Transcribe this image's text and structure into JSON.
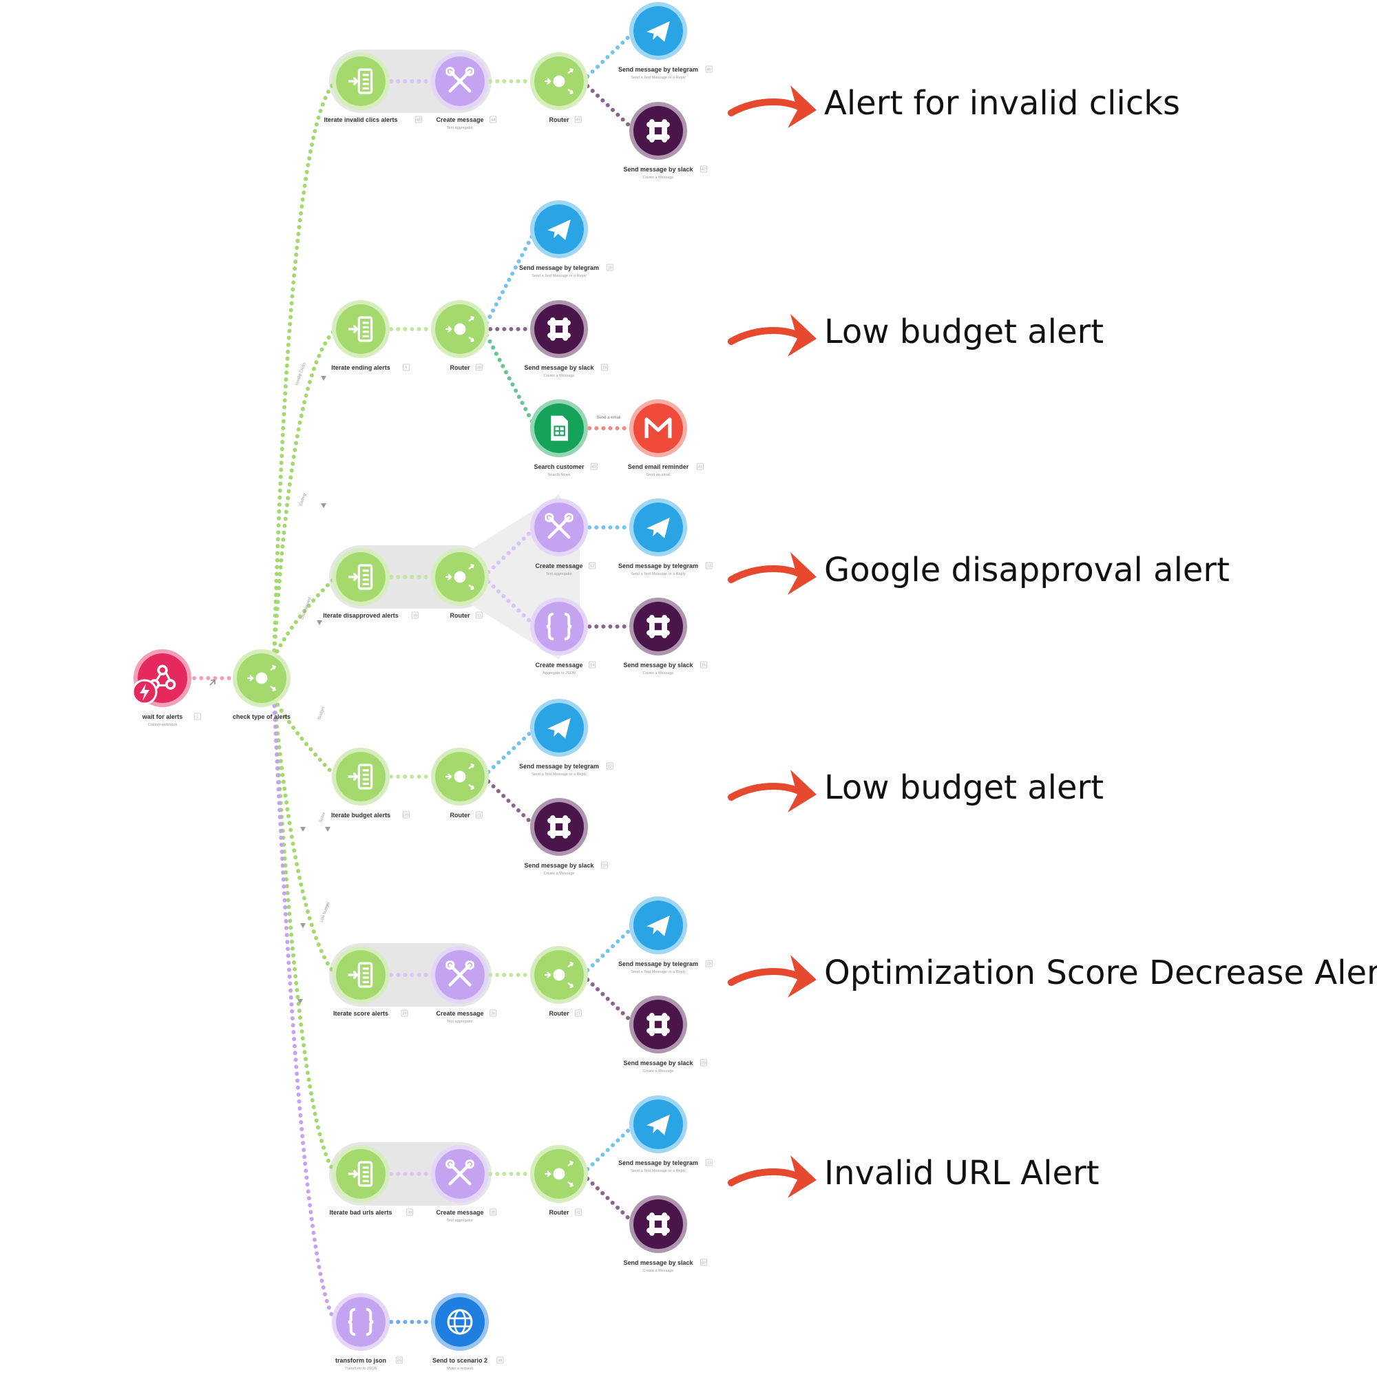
{
  "colors": {
    "flow": "#a3d96d",
    "tools": "#c4a4f0",
    "telegram": "#2aa4e4",
    "slack": "#4a154b",
    "sheets": "#15a35a",
    "gmail": "#ef4a3a",
    "http": "#1f7fe0",
    "webhook": "#e5295f",
    "arrow": "#e6492d",
    "group_bg": "#e6e6e6"
  },
  "trigger": {
    "label": "wait for alerts",
    "sub": "Custom webhook",
    "badge": "1",
    "icon": "webhook-icon"
  },
  "hub": {
    "label": "check type of alerts",
    "icon": "router-icon"
  },
  "filters": [
    "Invalid Clicks",
    "Ending",
    "Disapproved",
    "Budget",
    "Score",
    "Low budget"
  ],
  "branches": [
    {
      "alert_text": "Alert for invalid clicks",
      "nodes": [
        {
          "label": "Iterate invalid clics alerts",
          "badge": "43",
          "icon": "iterator-icon"
        },
        {
          "label": "Create message",
          "sub": "Text aggregator",
          "badge": "44",
          "icon": "tools-icon"
        },
        {
          "label": "Router",
          "badge": "45",
          "icon": "router-icon"
        },
        {
          "label": "Send message by telegram",
          "sub": "Send a Text Message or a Reply",
          "badge": "46",
          "icon": "telegram-icon"
        },
        {
          "label": "Send message by slack",
          "sub": "Create a Message",
          "badge": "47",
          "icon": "slack-icon"
        }
      ]
    },
    {
      "alert_text": "Low budget alert",
      "nodes": [
        {
          "label": "Iterate ending alerts",
          "badge": "6",
          "icon": "iterator-icon"
        },
        {
          "label": "Router",
          "badge": "38",
          "icon": "router-icon"
        },
        {
          "label": "Send message by telegram",
          "sub": "Send a Text Message or a Reply",
          "badge": "18",
          "icon": "telegram-icon"
        },
        {
          "label": "Send message by slack",
          "sub": "Create a Message",
          "badge": "19",
          "icon": "slack-icon"
        },
        {
          "label": "Search customer",
          "sub": "Search Rows",
          "badge": "40",
          "icon": "sheets-icon"
        },
        {
          "label": "Send email reminder",
          "sub": "Send an email",
          "badge": "41",
          "icon": "gmail-icon"
        }
      ],
      "link_label": "Send a email"
    },
    {
      "alert_text": "Google disapproval alert",
      "nodes": [
        {
          "label": "Iterate disapproved alerts",
          "badge": "10",
          "icon": "iterator-icon"
        },
        {
          "label": "Router",
          "badge": "11",
          "icon": "router-icon"
        },
        {
          "label": "Create message",
          "sub": "Text aggregator",
          "badge": "12",
          "icon": "tools-icon"
        },
        {
          "label": "Send message by telegram",
          "sub": "Send a Text Message or a Reply",
          "badge": "13",
          "icon": "telegram-icon"
        },
        {
          "label": "Create message",
          "sub": "Aggregate to JSON",
          "badge": "14",
          "icon": "json-icon"
        },
        {
          "label": "Send message by slack",
          "sub": "Create a Message",
          "badge": "15",
          "icon": "slack-icon"
        }
      ]
    },
    {
      "alert_text": "Low budget alert",
      "nodes": [
        {
          "label": "Iterate budget alerts",
          "badge": "20",
          "icon": "iterator-icon"
        },
        {
          "label": "Router",
          "badge": "21",
          "icon": "router-icon"
        },
        {
          "label": "Send message by telegram",
          "sub": "Send a Text Message or a Reply",
          "badge": "22",
          "icon": "telegram-icon"
        },
        {
          "label": "Send message by slack",
          "sub": "Create a Message",
          "badge": "23",
          "icon": "slack-icon"
        }
      ]
    },
    {
      "alert_text": "Optimization Score Decrease Alert",
      "nodes": [
        {
          "label": "Iterate score alerts",
          "badge": "25",
          "icon": "iterator-icon"
        },
        {
          "label": "Create message",
          "sub": "Text aggregator",
          "badge": "26",
          "icon": "tools-icon"
        },
        {
          "label": "Router",
          "badge": "27",
          "icon": "router-icon"
        },
        {
          "label": "Send message by telegram",
          "sub": "Send a Text Message or a Reply",
          "badge": "28",
          "icon": "telegram-icon"
        },
        {
          "label": "Send message by slack",
          "sub": "Create a Message",
          "badge": "29",
          "icon": "slack-icon"
        }
      ]
    },
    {
      "alert_text": "Invalid URL Alert",
      "nodes": [
        {
          "label": "Iterate bad urls alerts",
          "badge": "30",
          "icon": "iterator-icon"
        },
        {
          "label": "Create message",
          "sub": "Text aggregator",
          "badge": "31",
          "icon": "tools-icon"
        },
        {
          "label": "Router",
          "badge": "32",
          "icon": "router-icon"
        },
        {
          "label": "Send message by telegram",
          "sub": "Send a Text Message or a Reply",
          "badge": "33",
          "icon": "telegram-icon"
        },
        {
          "label": "Send message by slack",
          "sub": "Create a Message",
          "badge": "34",
          "icon": "slack-icon"
        }
      ]
    },
    {
      "alert_text": "",
      "nodes": [
        {
          "label": "transform to json",
          "sub": "Transform to JSON",
          "badge": "35",
          "icon": "json-icon"
        },
        {
          "label": "Send to scenario 2",
          "sub": "Make a request",
          "badge": "36",
          "icon": "http-icon"
        }
      ]
    }
  ]
}
